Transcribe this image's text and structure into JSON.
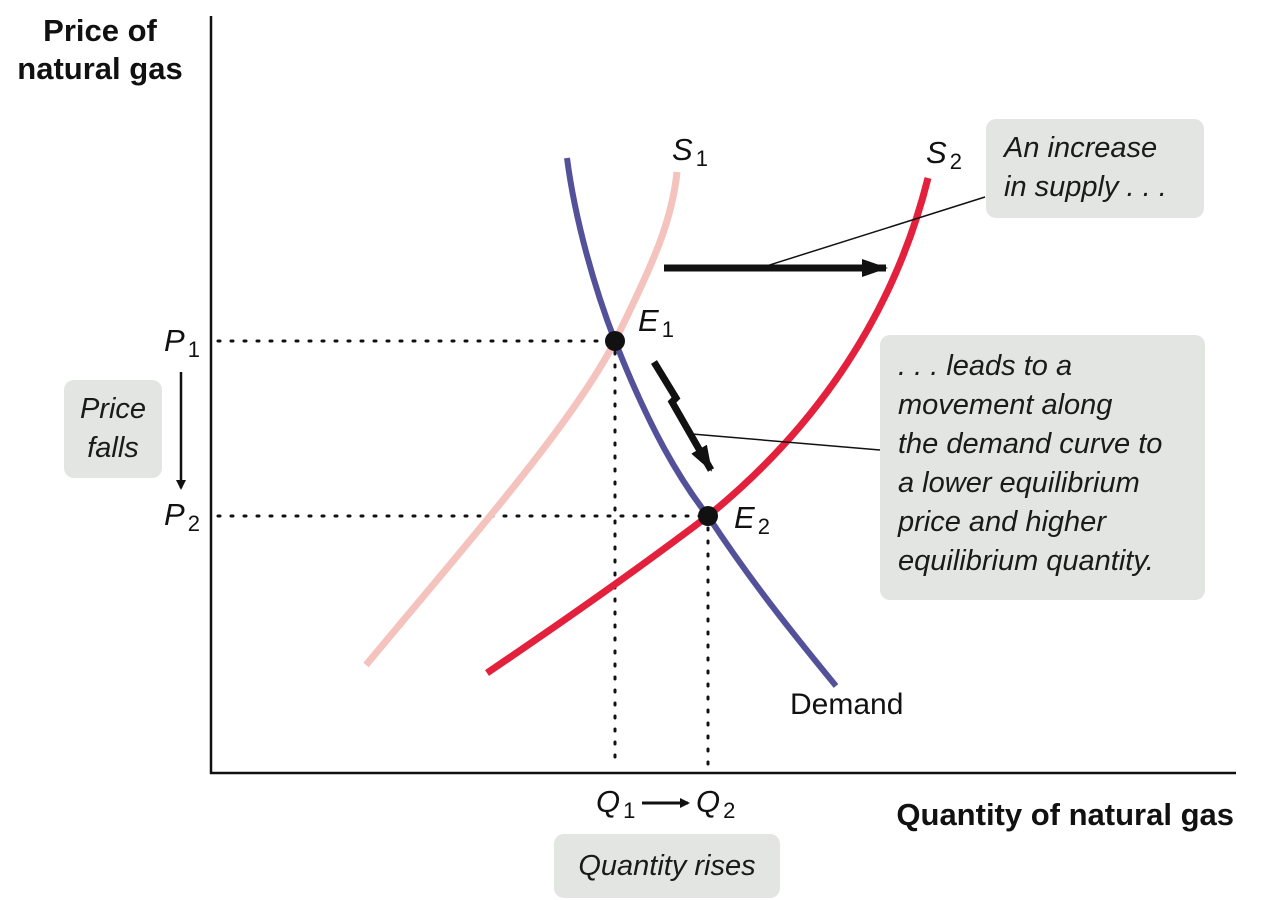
{
  "axes": {
    "y_title_lines": [
      "Price of",
      "natural gas"
    ],
    "x_title": "Quantity of natural gas"
  },
  "curves": {
    "demand": {
      "label": "Demand",
      "color": "#54519b"
    },
    "supply_1": {
      "label_letter": "S",
      "label_sub": "1",
      "color": "#f5c3bd"
    },
    "supply_2": {
      "label_letter": "S",
      "label_sub": "2",
      "color": "#e3213d"
    }
  },
  "points": {
    "e1": {
      "letter": "E",
      "sub": "1"
    },
    "e2": {
      "letter": "E",
      "sub": "2"
    }
  },
  "levels": {
    "p1": {
      "letter": "P",
      "sub": "1"
    },
    "p2": {
      "letter": "P",
      "sub": "2"
    },
    "q1": {
      "letter": "Q",
      "sub": "1"
    },
    "q2": {
      "letter": "Q",
      "sub": "2"
    }
  },
  "callouts": {
    "supply_increase": [
      "An increase",
      "in supply . . ."
    ],
    "movement": [
      ". . . leads to a",
      "movement along",
      "the demand curve to",
      "a lower equilibrium",
      "price and higher",
      "equilibrium quantity."
    ],
    "price_falls": [
      "Price",
      "falls"
    ],
    "quantity_rises": "Quantity rises"
  }
}
